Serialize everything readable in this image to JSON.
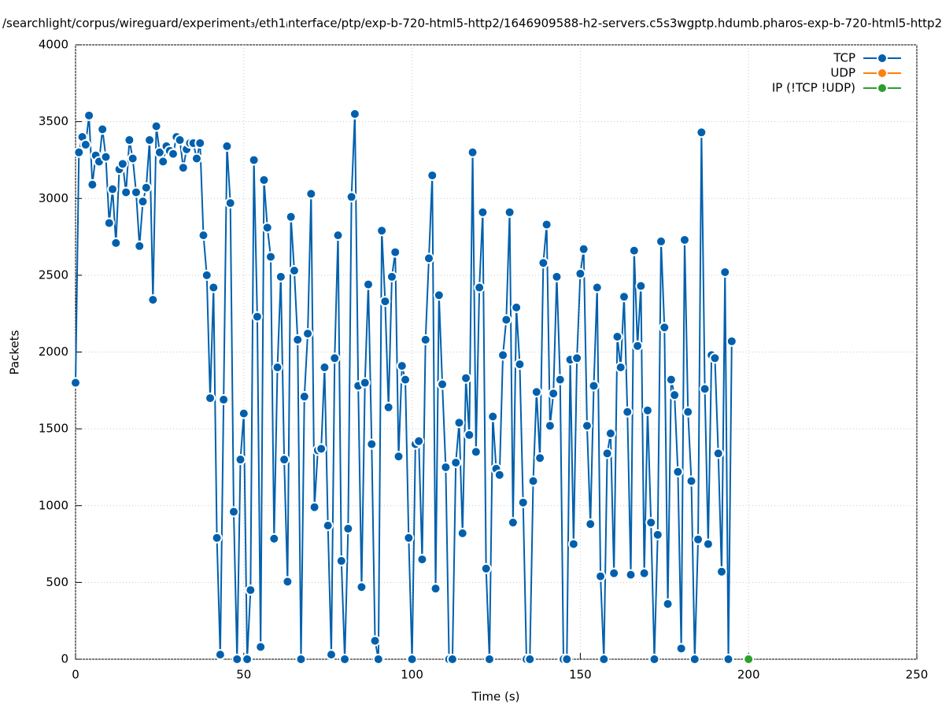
{
  "chart_data": {
    "type": "line",
    "title": "/searchlight/corpus/wireguard/experiment₃/eth1ᵢnterface/ptp/exp-b-720-html5-http2/1646909588-h2-servers.c5s3wgptp.hdumb.pharos-exp-b-720-html5-http2",
    "xlabel": "Time (s)",
    "ylabel": "Packets",
    "xlim": [
      0,
      250
    ],
    "xticks": [
      0,
      50,
      100,
      150,
      200,
      250
    ],
    "ylim": [
      0,
      4000
    ],
    "yticks": [
      0,
      500,
      1000,
      1500,
      2000,
      2500,
      3000,
      3500,
      4000
    ],
    "grid": true,
    "legend": "top-right",
    "series": [
      {
        "name": "TCP",
        "color": "#0060ad",
        "x": [
          0,
          1,
          2,
          3,
          4,
          5,
          6,
          7,
          8,
          9,
          10,
          11,
          12,
          13,
          14,
          15,
          16,
          17,
          18,
          19,
          20,
          21,
          22,
          23,
          24,
          25,
          26,
          27,
          28,
          29,
          30,
          31,
          32,
          33,
          34,
          35,
          36,
          37,
          38,
          39,
          40,
          41,
          42,
          43,
          44,
          45,
          46,
          47,
          48,
          49,
          50,
          51,
          52,
          53,
          54,
          55,
          56,
          57,
          58,
          59,
          60,
          61,
          62,
          63,
          64,
          65,
          66,
          67,
          68,
          69,
          70,
          71,
          72,
          73,
          74,
          75,
          76,
          77,
          78,
          79,
          80,
          81,
          82,
          83,
          84,
          85,
          86,
          87,
          88,
          89,
          90,
          91,
          92,
          93,
          94,
          95,
          96,
          97,
          98,
          99,
          100,
          101,
          102,
          103,
          104,
          105,
          106,
          107,
          108,
          109,
          110,
          111,
          112,
          113,
          114,
          115,
          116,
          117,
          118,
          119,
          120,
          121,
          122,
          123,
          124,
          125,
          126,
          127,
          128,
          129,
          130,
          131,
          132,
          133,
          134,
          135,
          136,
          137,
          138,
          139,
          140,
          141,
          142,
          143,
          144,
          145,
          146,
          147,
          148,
          149,
          150,
          151,
          152,
          153,
          154,
          155,
          156,
          157,
          158,
          159,
          160,
          161,
          162,
          163,
          164,
          165,
          166,
          167,
          168,
          169,
          170,
          171,
          172,
          173,
          174,
          175,
          176,
          177,
          178,
          179,
          180,
          181,
          182,
          183,
          184,
          185,
          186,
          187,
          188,
          189,
          190,
          191,
          192,
          193,
          194,
          195
        ],
        "values": [
          1800,
          3300,
          3400,
          3350,
          3540,
          3090,
          3280,
          3240,
          3450,
          3270,
          2840,
          3060,
          2710,
          3190,
          3225,
          3040,
          3380,
          3260,
          3040,
          2690,
          2980,
          3070,
          3380,
          2340,
          3470,
          3300,
          3240,
          3340,
          3310,
          3290,
          3400,
          3380,
          3200,
          3320,
          3360,
          3360,
          3260,
          3360,
          2760,
          2500,
          1700,
          2420,
          790,
          30,
          1690,
          3340,
          2970,
          960,
          0,
          1300,
          1600,
          0,
          450,
          3250,
          2230,
          80,
          3120,
          2810,
          2620,
          785,
          1900,
          2490,
          1300,
          505,
          2880,
          2530,
          2080,
          0,
          1710,
          2120,
          3030,
          990,
          1360,
          1370,
          1900,
          870,
          30,
          1960,
          2760,
          640,
          0,
          850,
          3010,
          3550,
          1780,
          470,
          1800,
          2440,
          1400,
          120,
          0,
          2790,
          2330,
          1640,
          2490,
          2650,
          1320,
          1910,
          1820,
          790,
          0,
          1400,
          1420,
          650,
          2080,
          2610,
          3150,
          460,
          2370,
          1790,
          1250,
          0,
          0,
          1280,
          1540,
          820,
          1830,
          1460,
          3300,
          1350,
          2420,
          2910,
          590,
          0,
          1580,
          1240,
          1200,
          1980,
          2210,
          2910,
          890,
          2290,
          1920,
          1020,
          0,
          0,
          1160,
          1740,
          1310,
          2580,
          2830,
          1520,
          1730,
          2490,
          1820,
          0,
          0,
          1950,
          750,
          1960,
          2510,
          2670,
          1520,
          880,
          1780,
          2420,
          540,
          0,
          1340,
          1470,
          560,
          2100,
          1900,
          2360,
          1610,
          550,
          2660,
          2040,
          2430,
          560,
          1620,
          890,
          0,
          810,
          2720,
          2160,
          360,
          1820,
          1720,
          1220,
          70,
          2730,
          1610,
          1160,
          0,
          780,
          3430,
          1760,
          750,
          1980,
          1960,
          1340,
          570,
          2520,
          0,
          2070
        ]
      },
      {
        "name": "UDP",
        "color": "#ff7f0e",
        "x": [],
        "values": []
      },
      {
        "name": "IP (!TCP  !UDP)",
        "color": "#2ca02c",
        "x": [
          200
        ],
        "values": [
          0
        ]
      }
    ]
  }
}
